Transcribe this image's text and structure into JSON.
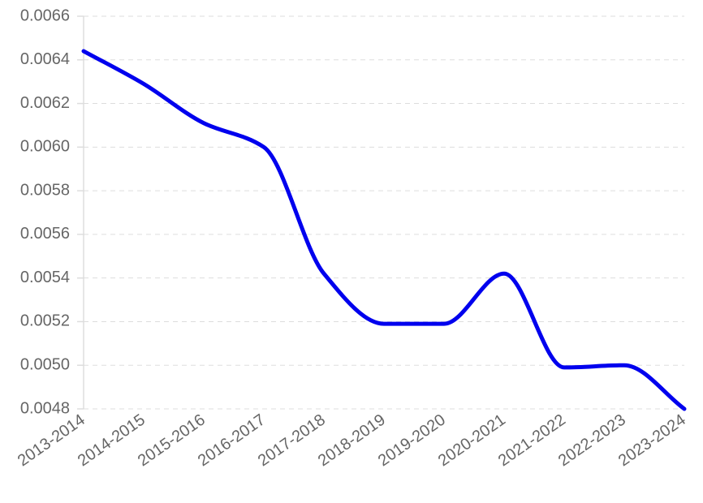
{
  "chart_data": {
    "type": "line",
    "categories": [
      "2013-2014",
      "2014-2015",
      "2015-2016",
      "2016-2017",
      "2017-2018",
      "2018-2019",
      "2019-2020",
      "2020-2021",
      "2021-2022",
      "2022-2023",
      "2023-2024"
    ],
    "series": [
      {
        "color": "#0000ee",
        "values": [
          0.00644,
          0.00629,
          0.00611,
          0.006,
          0.00542,
          0.00519,
          0.00519,
          0.00542,
          0.00499,
          0.005,
          0.0048
        ]
      }
    ],
    "ylim": [
      0.0048,
      0.0066
    ],
    "yticks": [
      0.0048,
      {
        "value": 0.005,
        "label": "0.0050"
      },
      0.0052,
      0.0054,
      0.0056,
      0.0058,
      {
        "value": 0.006,
        "label": "0.0060"
      },
      0.0062,
      0.0064,
      0.0066
    ],
    "grid": true
  }
}
